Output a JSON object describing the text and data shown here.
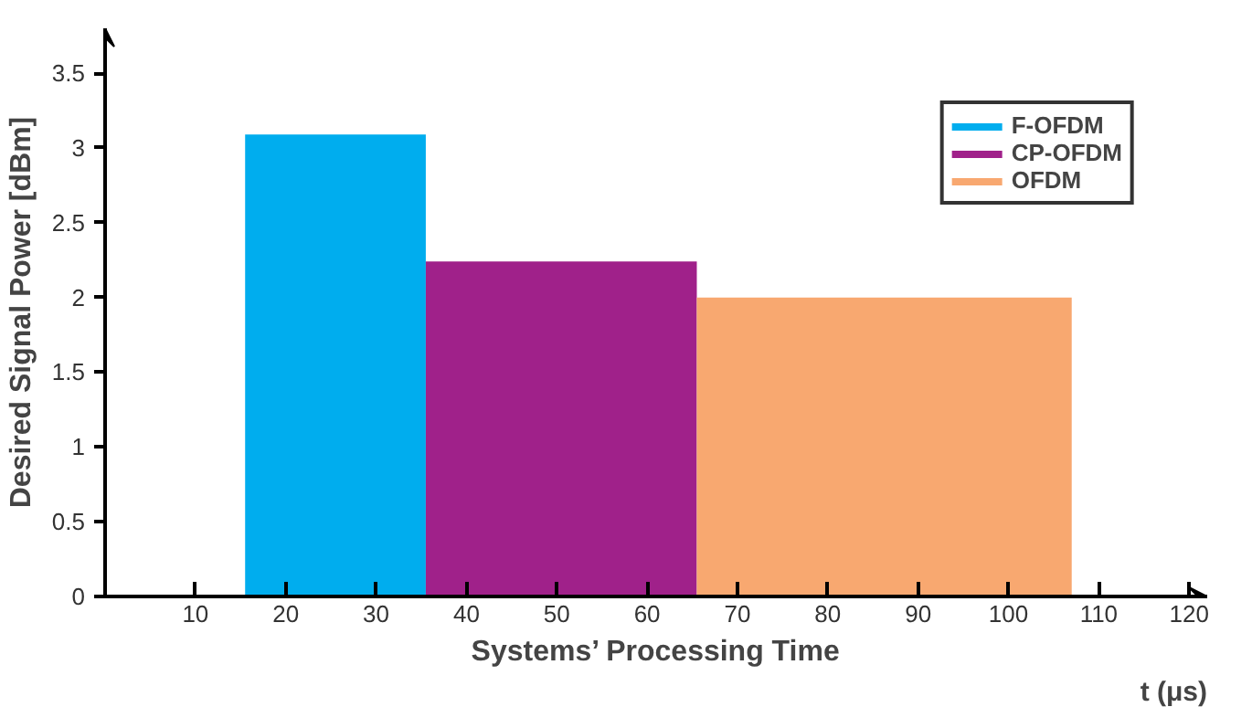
{
  "chart_data": {
    "type": "histogram",
    "xlabel": "Systems’ Processing Time",
    "ylabel": "Desired Signal Power [dBm]",
    "annotations": [
      "t (μs)"
    ],
    "bins": [
      15.5,
      35.5,
      65.5,
      107
    ],
    "series": [
      {
        "name": "F-OFDM",
        "color": "#00adee",
        "values": [
          3.09,
          null,
          null
        ]
      },
      {
        "name": "CP-OFDM",
        "color": "#a0218a",
        "values": [
          null,
          2.24,
          null
        ]
      },
      {
        "name": "OFDM",
        "color": "#f8a870",
        "values": [
          null,
          null,
          2.0
        ]
      }
    ],
    "xlim": [
      0,
      122
    ],
    "ylim": [
      0,
      3.8
    ],
    "xticks": [
      10,
      20,
      30,
      40,
      50,
      60,
      70,
      80,
      90,
      100,
      110,
      120
    ],
    "yticks": [
      0,
      0.5,
      1,
      1.5,
      2,
      2.5,
      3,
      3.5
    ],
    "grid": false,
    "legend": "top right"
  }
}
